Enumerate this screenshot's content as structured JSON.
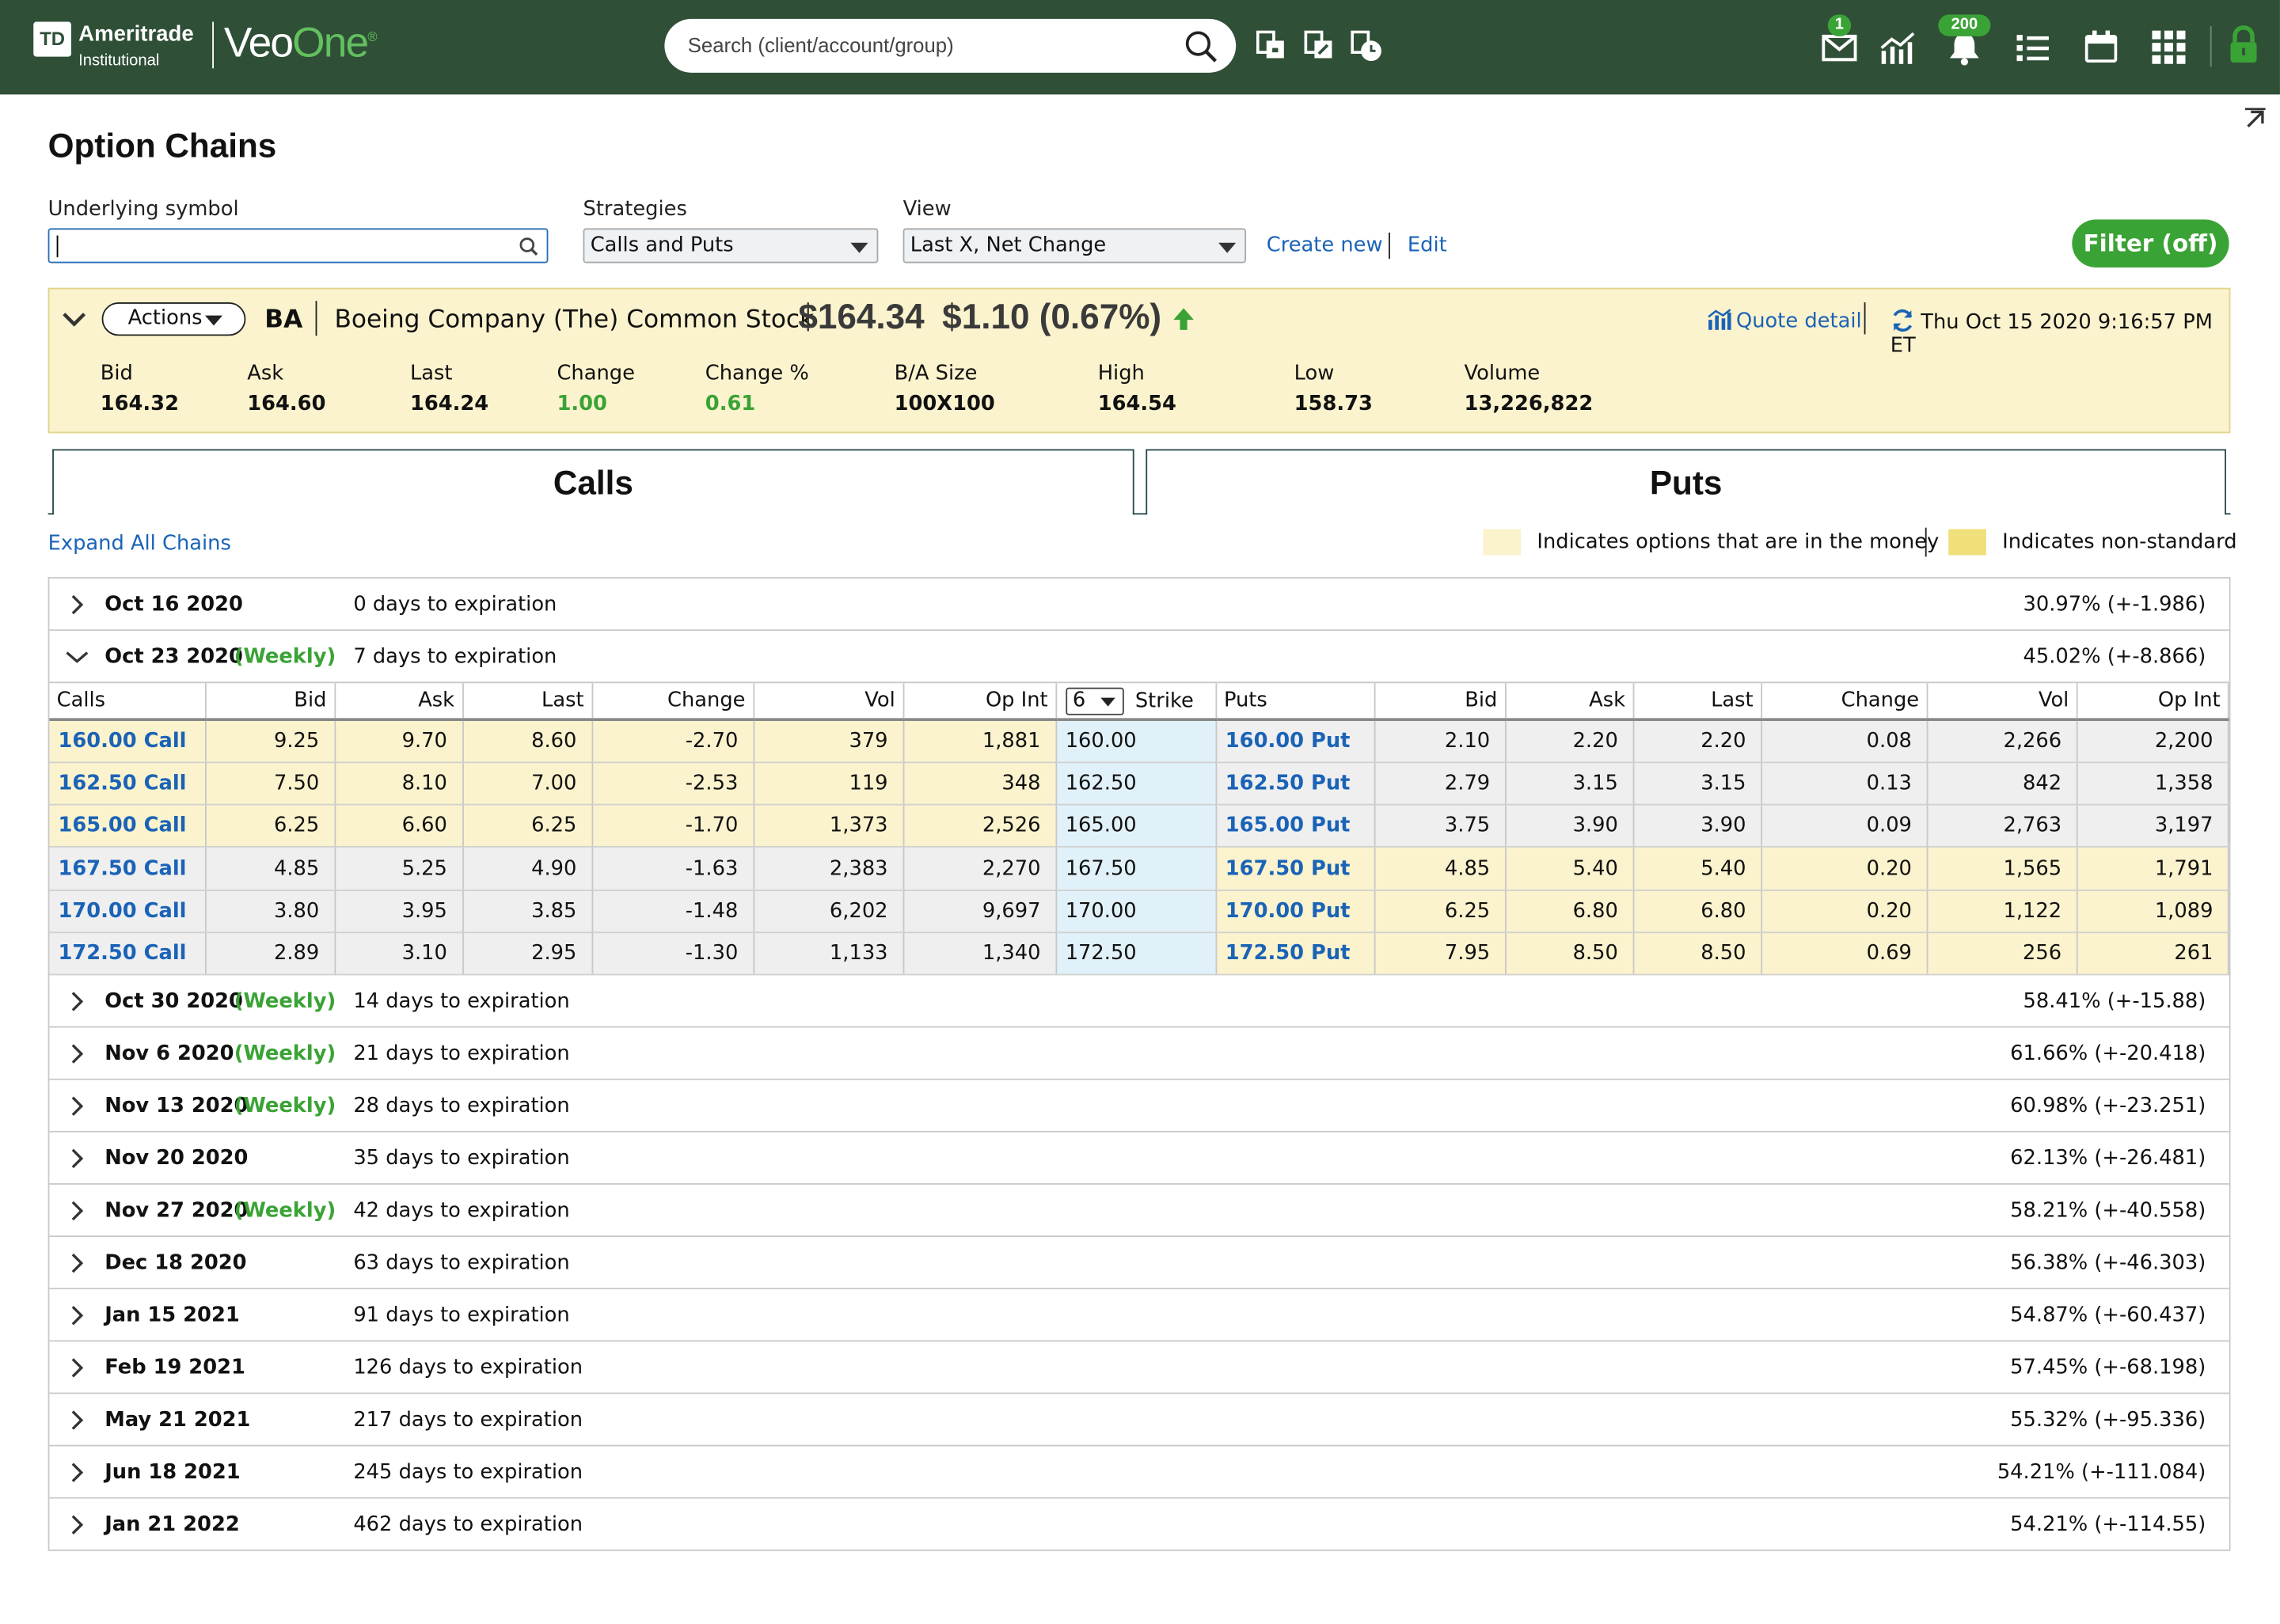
{
  "app": {
    "brand_td": "TD",
    "brand_ameritrade": "Ameritrade",
    "brand_institutional": "Institutional",
    "brand_veo": "Veo",
    "brand_one": "One",
    "search_placeholder": "Search (client/account/group)",
    "mail_badge": "1",
    "notif_badge": "200",
    "colors": {
      "header_bg": "#2f4f37",
      "accent_green": "#3aa335",
      "link_blue": "#1a63b7",
      "itm_yellow": "#fbf3cd",
      "nonstandard_yellow": "#efe07c",
      "strike_blue": "#e1f1f9"
    },
    "header_icons": [
      "search-icon",
      "client-add-icon",
      "client-edit-icon",
      "client-clock-icon",
      "mail-icon",
      "chart-icon",
      "bell-icon",
      "list-icon",
      "calendar-icon",
      "apps-grid-icon",
      "lock-icon"
    ]
  },
  "page": {
    "title": "Option Chains",
    "underlying_label": "Underlying symbol",
    "underlying_value": "",
    "strategies_label": "Strategies",
    "strategies_value": "Calls and Puts",
    "view_label": "View",
    "view_value": "Last X, Net Change",
    "create_new": "Create new",
    "edit": "Edit",
    "filter": "Filter (off)"
  },
  "quote": {
    "actions": "Actions",
    "symbol": "BA",
    "name": "Boeing Company (The) Common Stock",
    "price": "$164.34",
    "change": "$1.10 (0.67%)",
    "quote_detail": "Quote detail",
    "timestamp": "Thu Oct 15 2020 9:16:57 PM ET",
    "stats": [
      {
        "label": "Bid",
        "value": "164.32"
      },
      {
        "label": "Ask",
        "value": "164.60"
      },
      {
        "label": "Last",
        "value": "164.24"
      },
      {
        "label": "Change",
        "value": "1.00"
      },
      {
        "label": "Change %",
        "value": "0.61"
      },
      {
        "label": "B/A Size",
        "value": "100X100"
      },
      {
        "label": "High",
        "value": "164.54"
      },
      {
        "label": "Low",
        "value": "158.73"
      },
      {
        "label": "Volume",
        "value": "13,226,822"
      }
    ]
  },
  "tabs": {
    "calls": "Calls",
    "puts": "Puts"
  },
  "legend": {
    "expand_all": "Expand All Chains",
    "itm": "Indicates options that are in the money",
    "nonstandard": "Indicates non-standard"
  },
  "table": {
    "headers": [
      "Calls",
      "Bid",
      "Ask",
      "Last",
      "Change",
      "Vol",
      "Op Int",
      "Strike",
      "Puts",
      "Bid",
      "Ask",
      "Last",
      "Change",
      "Vol",
      "Op Int"
    ],
    "strike_count": "6",
    "rows": [
      {
        "call": "160.00 Call",
        "c": [
          "9.25",
          "9.70",
          "8.60",
          "-2.70",
          "379",
          "1,881"
        ],
        "strike": "160.00",
        "put": "160.00 Put",
        "p": [
          "2.10",
          "2.20",
          "2.20",
          "0.08",
          "2,266",
          "2,200"
        ],
        "call_itm": true
      },
      {
        "call": "162.50 Call",
        "c": [
          "7.50",
          "8.10",
          "7.00",
          "-2.53",
          "119",
          "348"
        ],
        "strike": "162.50",
        "put": "162.50 Put",
        "p": [
          "2.79",
          "3.15",
          "3.15",
          "0.13",
          "842",
          "1,358"
        ],
        "call_itm": true
      },
      {
        "call": "165.00 Call",
        "c": [
          "6.25",
          "6.60",
          "6.25",
          "-1.70",
          "1,373",
          "2,526"
        ],
        "strike": "165.00",
        "put": "165.00 Put",
        "p": [
          "3.75",
          "3.90",
          "3.90",
          "0.09",
          "2,763",
          "3,197"
        ],
        "call_itm": true
      },
      {
        "call": "167.50 Call",
        "c": [
          "4.85",
          "5.25",
          "4.90",
          "-1.63",
          "2,383",
          "2,270"
        ],
        "strike": "167.50",
        "put": "167.50 Put",
        "p": [
          "4.85",
          "5.40",
          "5.40",
          "0.20",
          "1,565",
          "1,791"
        ],
        "call_itm": false
      },
      {
        "call": "170.00 Call",
        "c": [
          "3.80",
          "3.95",
          "3.85",
          "-1.48",
          "6,202",
          "9,697"
        ],
        "strike": "170.00",
        "put": "170.00 Put",
        "p": [
          "6.25",
          "6.80",
          "6.80",
          "0.20",
          "1,122",
          "1,089"
        ],
        "call_itm": false
      },
      {
        "call": "172.50 Call",
        "c": [
          "2.89",
          "3.10",
          "2.95",
          "-1.30",
          "1,133",
          "1,340"
        ],
        "strike": "172.50",
        "put": "172.50 Put",
        "p": [
          "7.95",
          "8.50",
          "8.50",
          "0.69",
          "256",
          "261"
        ],
        "call_itm": false
      }
    ]
  },
  "expirations": [
    {
      "date": "Oct 16 2020",
      "weekly": "",
      "days": "0 days to expiration",
      "iv": "30.97% (+-1.986)",
      "expanded": false
    },
    {
      "date": "Oct 23 2020",
      "weekly": "(Weekly)",
      "days": "7 days to expiration",
      "iv": "45.02% (+-8.866)",
      "expanded": true
    },
    {
      "date": "Oct 30 2020",
      "weekly": "(Weekly)",
      "days": "14 days to expiration",
      "iv": "58.41% (+-15.88)",
      "expanded": false
    },
    {
      "date": "Nov 6 2020",
      "weekly": "(Weekly)",
      "days": "21 days to expiration",
      "iv": "61.66% (+-20.418)",
      "expanded": false
    },
    {
      "date": "Nov 13 2020",
      "weekly": "(Weekly)",
      "days": "28 days to expiration",
      "iv": "60.98% (+-23.251)",
      "expanded": false
    },
    {
      "date": "Nov 20 2020",
      "weekly": "",
      "days": "35 days to expiration",
      "iv": "62.13% (+-26.481)",
      "expanded": false
    },
    {
      "date": "Nov 27 2020",
      "weekly": "(Weekly)",
      "days": "42 days to expiration",
      "iv": "58.21% (+-40.558)",
      "expanded": false
    },
    {
      "date": "Dec 18 2020",
      "weekly": "",
      "days": "63 days to expiration",
      "iv": "56.38% (+-46.303)",
      "expanded": false
    },
    {
      "date": "Jan 15 2021",
      "weekly": "",
      "days": "91 days to expiration",
      "iv": "54.87% (+-60.437)",
      "expanded": false
    },
    {
      "date": "Feb 19 2021",
      "weekly": "",
      "days": "126 days to expiration",
      "iv": "57.45% (+-68.198)",
      "expanded": false
    },
    {
      "date": "May 21 2021",
      "weekly": "",
      "days": "217 days to expiration",
      "iv": "55.32% (+-95.336)",
      "expanded": false
    },
    {
      "date": "Jun 18 2021",
      "weekly": "",
      "days": "245 days to expiration",
      "iv": "54.21% (+-111.084)",
      "expanded": false
    },
    {
      "date": "Jan 21 2022",
      "weekly": "",
      "days": "462 days to expiration",
      "iv": "54.21% (+-114.55)",
      "expanded": false
    }
  ]
}
